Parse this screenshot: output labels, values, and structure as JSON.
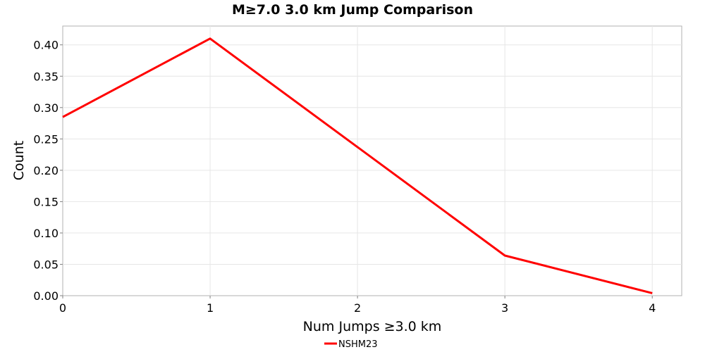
{
  "chart_data": {
    "type": "line",
    "title": "M≥7.0 3.0 km Jump Comparison",
    "xlabel": "Num Jumps ≥3.0 km",
    "ylabel": "Count",
    "xlim": [
      0,
      4.2
    ],
    "ylim": [
      0,
      0.43
    ],
    "x_ticks": [
      0,
      1,
      2,
      3,
      4
    ],
    "x_tick_labels": [
      "0",
      "1",
      "2",
      "3",
      "4"
    ],
    "y_ticks": [
      0,
      0.05,
      0.1,
      0.15,
      0.2,
      0.25,
      0.3,
      0.35,
      0.4
    ],
    "y_tick_labels": [
      "0.00",
      "0.05",
      "0.10",
      "0.15",
      "0.20",
      "0.25",
      "0.30",
      "0.35",
      "0.40"
    ],
    "grid": true,
    "legend_position": "bottom-center",
    "series": [
      {
        "name": "NSHM23",
        "color": "#ff0000",
        "x": [
          0,
          1,
          2,
          3,
          4
        ],
        "y": [
          0.285,
          0.41,
          0.237,
          0.064,
          0.004
        ]
      }
    ]
  }
}
